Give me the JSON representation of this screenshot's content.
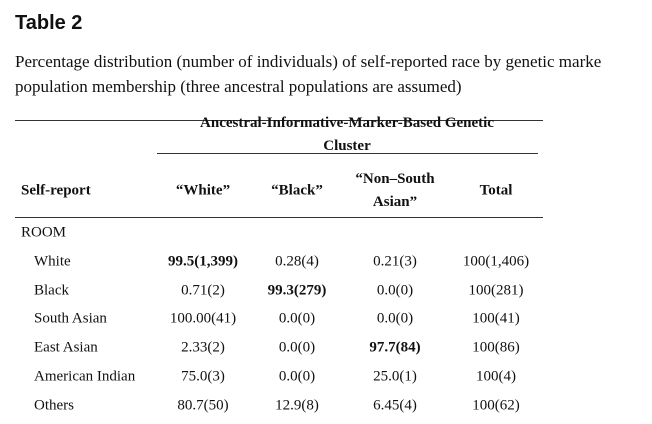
{
  "header": {
    "title": "Table 2",
    "caption_lines": [
      "Percentage distribution (number of individuals) of self-reported race by genetic marke",
      "population membership (three ancestral populations are assumed)"
    ]
  },
  "table": {
    "group_header": "Ancestral-Informative-Marker-Based Genetic Cluster",
    "columns": [
      "Self-report",
      "“White”",
      "“Black”",
      "“Non–South Asian”",
      "Total"
    ],
    "section": "ROOM",
    "rows": [
      [
        {
          "text": "White"
        },
        {
          "text": "99.5(1,399)",
          "bold": true
        },
        {
          "text": "0.28(4)"
        },
        {
          "text": "0.21(3)"
        },
        {
          "text": "100(1,406)"
        }
      ],
      [
        {
          "text": "Black"
        },
        {
          "text": "0.71(2)"
        },
        {
          "text": "99.3(279)",
          "bold": true
        },
        {
          "text": "0.0(0)"
        },
        {
          "text": "100(281)"
        }
      ],
      [
        {
          "text": "South Asian"
        },
        {
          "text": "100.00(41)"
        },
        {
          "text": "0.0(0)"
        },
        {
          "text": "0.0(0)"
        },
        {
          "text": "100(41)"
        }
      ],
      [
        {
          "text": "East Asian"
        },
        {
          "text": "2.33(2)"
        },
        {
          "text": "0.0(0)"
        },
        {
          "text": "97.7(84)",
          "bold": true
        },
        {
          "text": "100(86)"
        }
      ],
      [
        {
          "text": "American Indian"
        },
        {
          "text": "75.0(3)"
        },
        {
          "text": "0.0(0)"
        },
        {
          "text": "25.0(1)"
        },
        {
          "text": "100(4)"
        }
      ],
      [
        {
          "text": "Others"
        },
        {
          "text": "80.7(50)"
        },
        {
          "text": "12.9(8)"
        },
        {
          "text": "6.45(4)"
        },
        {
          "text": "100(62)"
        }
      ]
    ]
  }
}
